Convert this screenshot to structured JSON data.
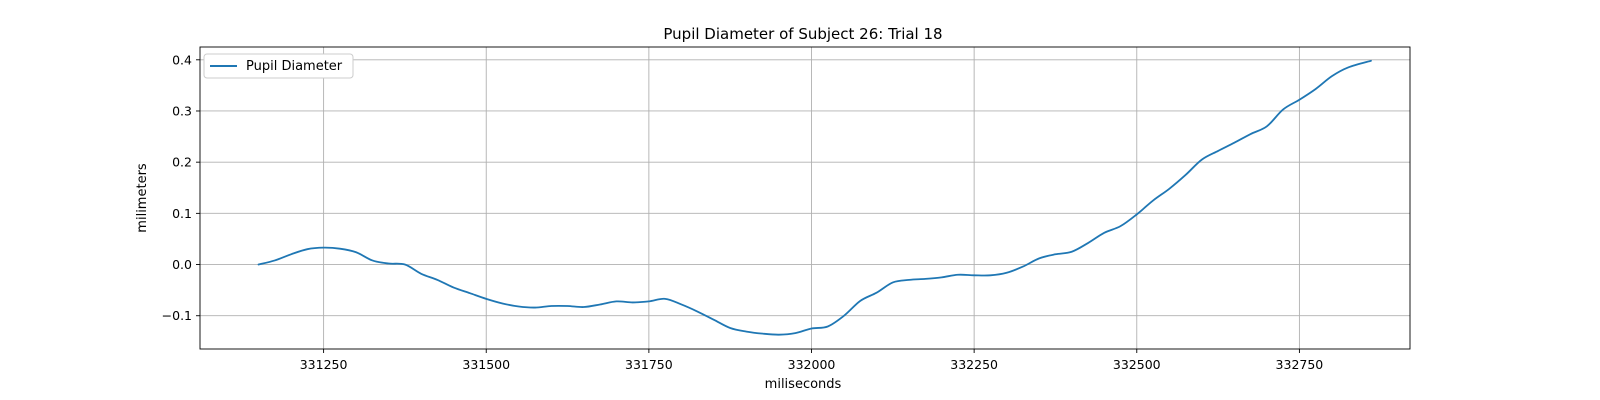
{
  "chart_data": {
    "type": "line",
    "title": "Pupil Diameter of Subject 26: Trial 18",
    "xlabel": "miliseconds",
    "ylabel": "milimeters",
    "xlim": [
      331060,
      332920
    ],
    "ylim": [
      -0.165,
      0.425
    ],
    "xticks": [
      331250,
      331500,
      331750,
      332000,
      332250,
      332500,
      332750
    ],
    "xtick_labels": [
      "331250",
      "331500",
      "331750",
      "332000",
      "332250",
      "332500",
      "332750"
    ],
    "yticks": [
      0.4,
      0.3,
      0.2,
      0.1,
      0.0,
      -0.1
    ],
    "ytick_labels": [
      "0.4",
      "0.3",
      "0.2",
      "0.1",
      "0.0",
      "−0.1"
    ],
    "grid": true,
    "legend_position": "top-left",
    "series": [
      {
        "name": "Pupil Diameter",
        "color": "#1f77b4",
        "x": [
          331150,
          331175,
          331200,
          331225,
          331250,
          331275,
          331300,
          331325,
          331350,
          331375,
          331400,
          331425,
          331450,
          331475,
          331500,
          331525,
          331550,
          331575,
          331600,
          331625,
          331650,
          331675,
          331700,
          331725,
          331750,
          331775,
          331800,
          331825,
          331850,
          331875,
          331900,
          331925,
          331950,
          331975,
          332000,
          332025,
          332050,
          332075,
          332100,
          332125,
          332150,
          332175,
          332200,
          332225,
          332250,
          332275,
          332300,
          332325,
          332350,
          332375,
          332400,
          332425,
          332450,
          332475,
          332500,
          332525,
          332550,
          332575,
          332600,
          332625,
          332650,
          332675,
          332700,
          332725,
          332750,
          332775,
          332800,
          332825,
          332860
        ],
        "y": [
          0.0,
          0.008,
          0.02,
          0.03,
          0.033,
          0.031,
          0.024,
          0.008,
          0.002,
          0.0,
          -0.018,
          -0.03,
          -0.045,
          -0.056,
          -0.067,
          -0.076,
          -0.082,
          -0.084,
          -0.081,
          -0.081,
          -0.083,
          -0.078,
          -0.072,
          -0.074,
          -0.072,
          -0.067,
          -0.078,
          -0.092,
          -0.108,
          -0.124,
          -0.131,
          -0.135,
          -0.137,
          -0.134,
          -0.125,
          -0.121,
          -0.1,
          -0.071,
          -0.055,
          -0.035,
          -0.03,
          -0.028,
          -0.025,
          -0.02,
          -0.021,
          -0.021,
          -0.016,
          -0.004,
          0.012,
          0.02,
          0.025,
          0.042,
          0.062,
          0.075,
          0.098,
          0.125,
          0.148,
          0.175,
          0.205,
          0.222,
          0.238,
          0.255,
          0.27,
          0.303,
          0.322,
          0.343,
          0.368,
          0.385,
          0.398
        ]
      }
    ]
  }
}
